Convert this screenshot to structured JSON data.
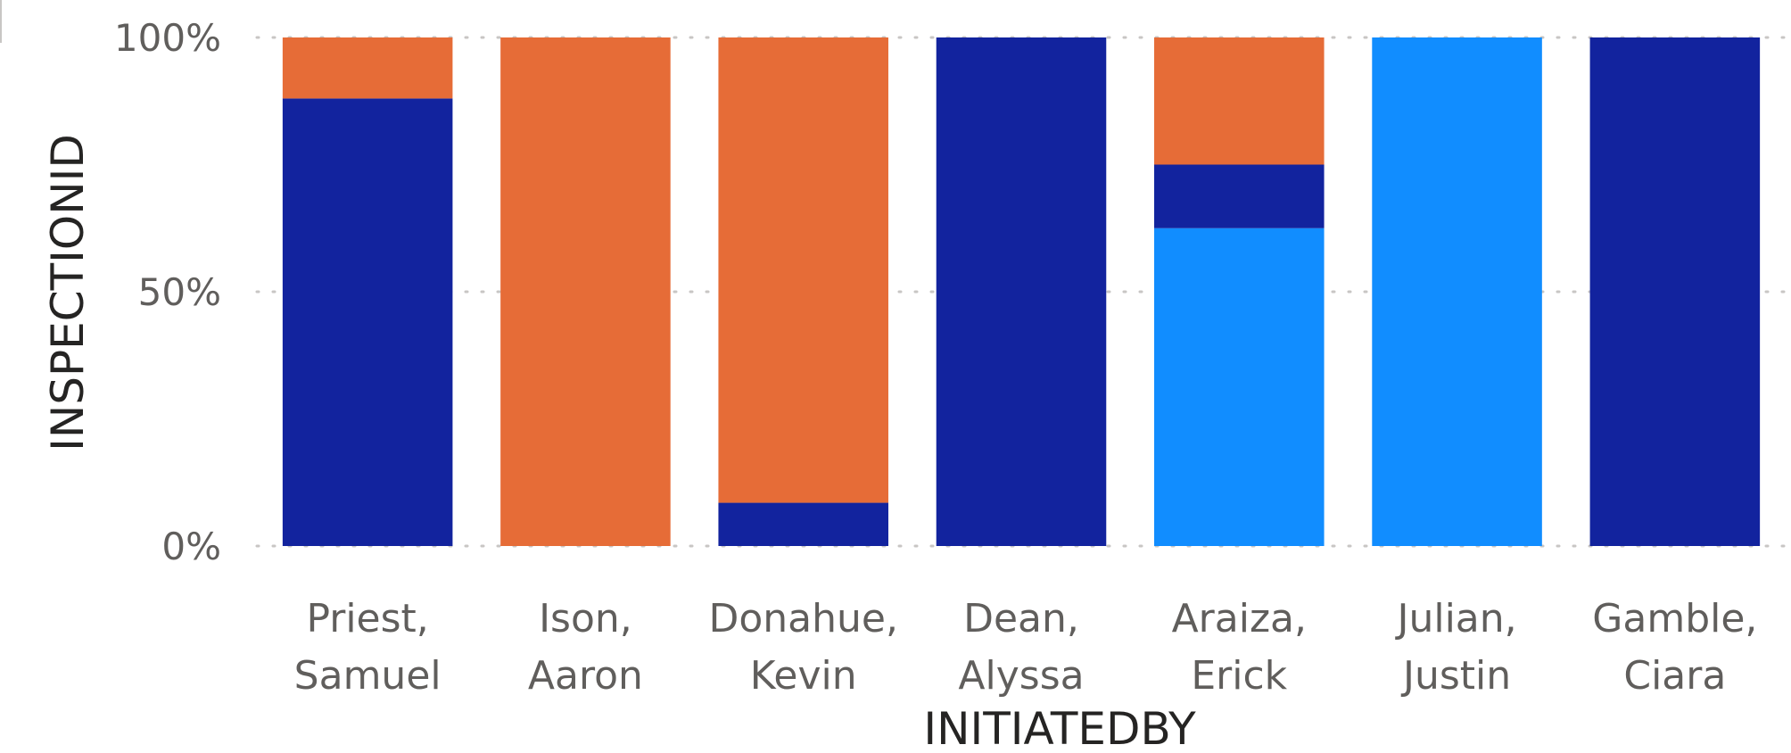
{
  "chart_data": {
    "type": "bar",
    "stacked": true,
    "normalized": true,
    "xlabel": "INITIATEDBY",
    "ylabel": "INSPECTIONID",
    "ylim": [
      0,
      100
    ],
    "yticks": [
      "0%",
      "50%",
      "100%"
    ],
    "ytick_values": [
      0,
      50,
      100
    ],
    "grid": "horizontal-dotted",
    "legend": "none",
    "categories": [
      [
        "Priest,",
        "Samuel"
      ],
      [
        "Ison,",
        "Aaron"
      ],
      [
        "Donahue,",
        "Kevin"
      ],
      [
        "Dean,",
        "Alyssa"
      ],
      [
        "Araiza,",
        "Erick"
      ],
      [
        "Julian,",
        "Justin"
      ],
      [
        "Gamble,",
        "Ciara"
      ]
    ],
    "series": [
      {
        "color": "#118dff",
        "values": [
          0,
          0,
          0,
          0,
          62.5,
          100,
          0
        ]
      },
      {
        "color": "#12239e",
        "values": [
          88,
          0,
          8.5,
          100,
          12.5,
          0,
          100
        ]
      },
      {
        "color": "#e66c37",
        "values": [
          12,
          100,
          91.5,
          0,
          25,
          0,
          0
        ]
      }
    ]
  }
}
